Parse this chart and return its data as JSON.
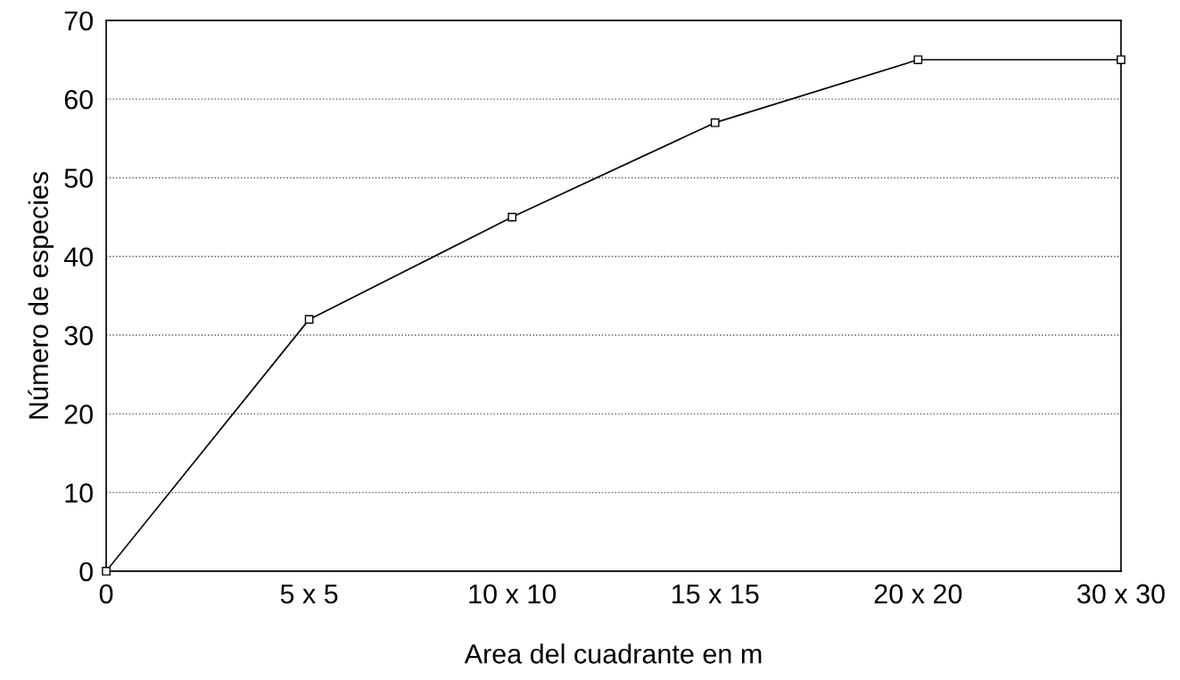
{
  "chart_data": {
    "type": "line",
    "xlabel": "Area del cuadrante en m",
    "ylabel": "Número de especies",
    "categories": [
      "0",
      "5 x 5",
      "10 x 10",
      "15 x 15",
      "20 x 20",
      "30 x 30"
    ],
    "series": [
      {
        "color": "#000000",
        "values": [
          0,
          32,
          45,
          57,
          65,
          65
        ]
      }
    ],
    "ylim": [
      0,
      70
    ],
    "yticks": [
      0,
      10,
      20,
      30,
      40,
      50,
      60,
      70
    ],
    "grid": "y",
    "marker": "square",
    "line_style": "solid"
  }
}
